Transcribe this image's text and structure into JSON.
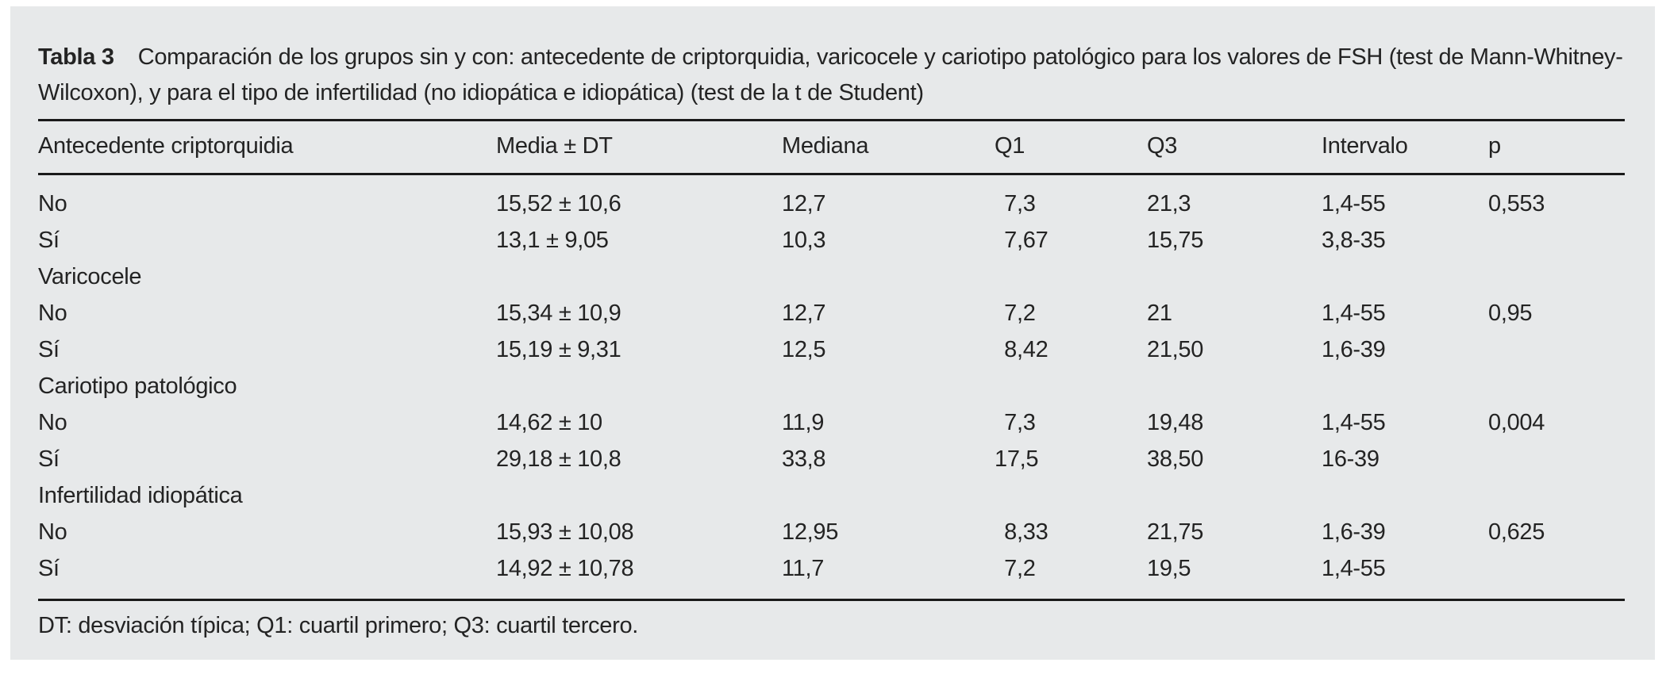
{
  "title": {
    "label": "Tabla 3",
    "text": "Comparación de los grupos sin y con: antecedente de criptorquidia, varicocele y cariotipo patológico para los valores de FSH (test de Mann-Whitney-Wilcoxon), y para el tipo de infertilidad (no idiopática e idiopática) (test de la t de Student)"
  },
  "table": {
    "columns": [
      "Antecedente criptorquidia",
      "Media ± DT",
      "Mediana",
      "Q1",
      "Q3",
      "Intervalo",
      "p"
    ],
    "rows": [
      {
        "type": "data",
        "label": "No",
        "media": "15,52 ± 10,6",
        "mediana": "12,7",
        "q1": "7,3",
        "q3": "21,3",
        "intervalo": "1,4-55",
        "p": "0,553"
      },
      {
        "type": "data",
        "label": "Sí",
        "media": "13,1 ± 9,05",
        "mediana": "10,3",
        "q1": "7,67",
        "q3": "15,75",
        "intervalo": "3,8-35",
        "p": ""
      },
      {
        "type": "section",
        "label": "Varicocele"
      },
      {
        "type": "data",
        "label": "No",
        "media": "15,34 ± 10,9",
        "mediana": "12,7",
        "q1": "7,2",
        "q3": "21",
        "intervalo": "1,4-55",
        "p": "0,95"
      },
      {
        "type": "data",
        "label": "Sí",
        "media": "15,19 ± 9,31",
        "mediana": "12,5",
        "q1": "8,42",
        "q3": "21,50",
        "intervalo": "1,6-39",
        "p": ""
      },
      {
        "type": "section",
        "label": "Cariotipo patológico"
      },
      {
        "type": "data",
        "label": "No",
        "media": "14,62 ± 10",
        "mediana": "11,9",
        "q1": "7,3",
        "q3": "19,48",
        "intervalo": "1,4-55",
        "p": "0,004"
      },
      {
        "type": "data",
        "label": "Sí",
        "media": "29,18 ± 10,8",
        "mediana": "33,8",
        "q1": "17,5",
        "q3": "38,50",
        "intervalo": "16-39",
        "p": ""
      },
      {
        "type": "section",
        "label": "Infertilidad idiopática"
      },
      {
        "type": "data",
        "label": "No",
        "media": "15,93 ± 10,08",
        "mediana": "12,95",
        "q1": "8,33",
        "q3": "21,75",
        "intervalo": "1,6-39",
        "p": "0,625"
      },
      {
        "type": "data",
        "label": "Sí",
        "media": "14,92 ± 10,78",
        "mediana": "11,7",
        "q1": "7,2",
        "q3": "19,5",
        "intervalo": "1,4-55",
        "p": ""
      }
    ]
  },
  "footnote": "DT: desviación típica; Q1: cuartil primero; Q3: cuartil tercero.",
  "colors": {
    "panel_bg": "#e7e9ea",
    "text": "#232323",
    "rule": "#1a1a1a"
  }
}
